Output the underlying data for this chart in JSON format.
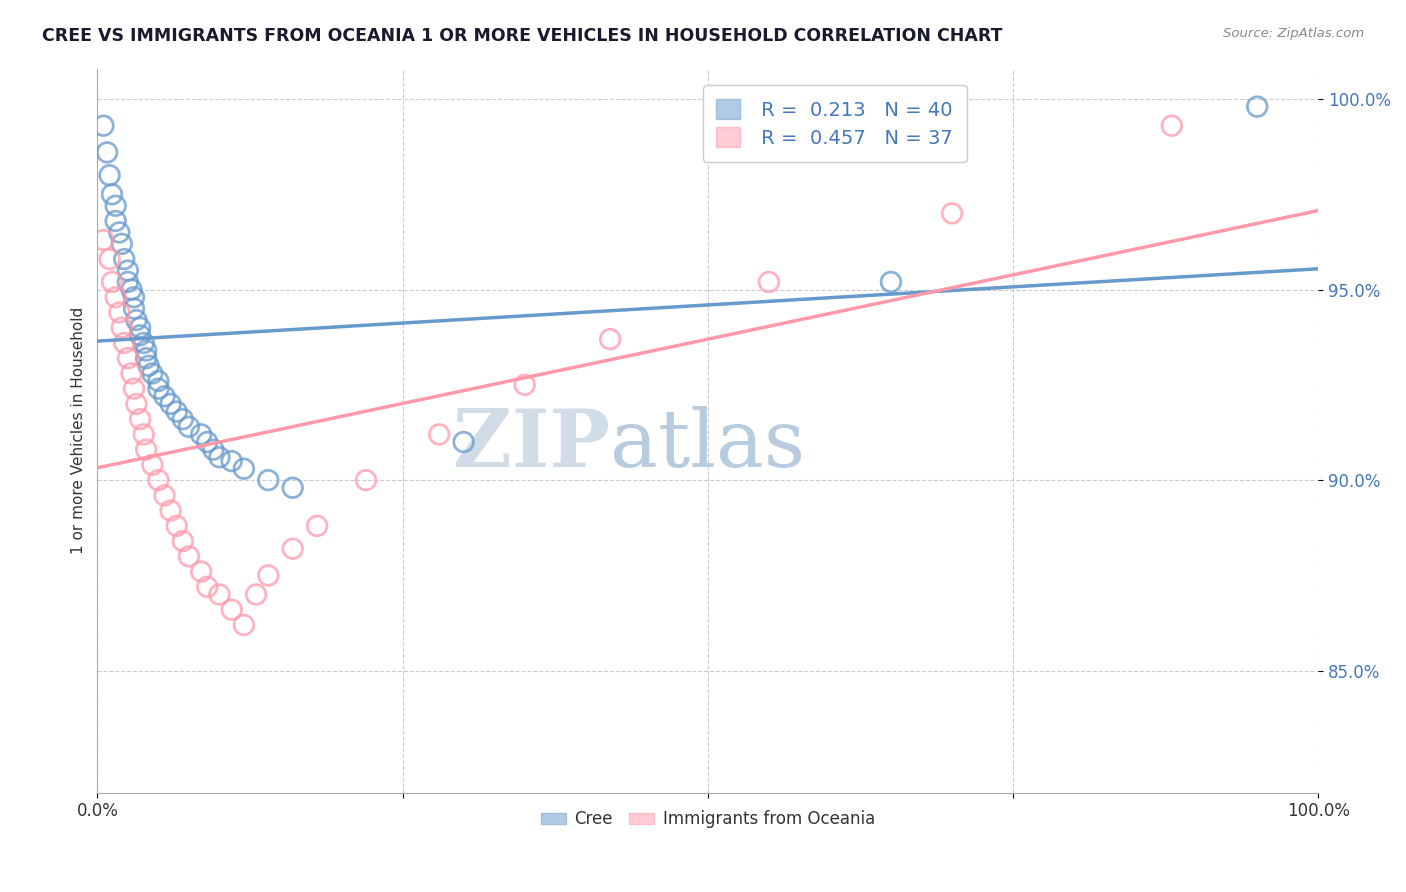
{
  "title": "CREE VS IMMIGRANTS FROM OCEANIA 1 OR MORE VEHICLES IN HOUSEHOLD CORRELATION CHART",
  "source_text": "Source: ZipAtlas.com",
  "ylabel": "1 or more Vehicles in Household",
  "xlim": [
    0.0,
    1.0
  ],
  "ylim": [
    0.818,
    1.008
  ],
  "ytick_positions": [
    0.85,
    0.9,
    0.95,
    1.0
  ],
  "ytick_labels": [
    "85.0%",
    "90.0%",
    "95.0%",
    "100.0%"
  ],
  "cree_color": "#6699cc",
  "oceania_color": "#ff99aa",
  "cree_R": 0.213,
  "cree_N": 40,
  "oceania_R": 0.457,
  "oceania_N": 37,
  "watermark_zip": "ZIP",
  "watermark_atlas": "atlas",
  "watermark_color_zip": "#d0dde8",
  "watermark_color_atlas": "#b8cce0",
  "legend_box_color": "#ffffff",
  "legend_border_color": "#cccccc",
  "title_color": "#1a1a2e",
  "axis_label_color": "#333333",
  "tick_color_x": "#333333",
  "tick_color_y": "#4477bb",
  "grid_color": "#cccccc",
  "background_color": "#ffffff",
  "cree_x": [
    0.005,
    0.008,
    0.01,
    0.012,
    0.015,
    0.015,
    0.018,
    0.02,
    0.022,
    0.025,
    0.025,
    0.028,
    0.03,
    0.03,
    0.032,
    0.035,
    0.035,
    0.038,
    0.04,
    0.04,
    0.042,
    0.045,
    0.05,
    0.05,
    0.055,
    0.06,
    0.065,
    0.07,
    0.075,
    0.085,
    0.09,
    0.095,
    0.1,
    0.11,
    0.12,
    0.14,
    0.16,
    0.3,
    0.65,
    0.95
  ],
  "cree_y": [
    0.993,
    0.986,
    0.98,
    0.975,
    0.972,
    0.968,
    0.965,
    0.962,
    0.958,
    0.955,
    0.952,
    0.95,
    0.948,
    0.945,
    0.942,
    0.94,
    0.938,
    0.936,
    0.934,
    0.932,
    0.93,
    0.928,
    0.926,
    0.924,
    0.922,
    0.92,
    0.918,
    0.916,
    0.914,
    0.912,
    0.91,
    0.908,
    0.906,
    0.905,
    0.903,
    0.9,
    0.898,
    0.91,
    0.952,
    0.998
  ],
  "oceania_x": [
    0.005,
    0.01,
    0.012,
    0.015,
    0.018,
    0.02,
    0.022,
    0.025,
    0.028,
    0.03,
    0.032,
    0.035,
    0.038,
    0.04,
    0.045,
    0.05,
    0.055,
    0.06,
    0.065,
    0.07,
    0.075,
    0.085,
    0.09,
    0.1,
    0.11,
    0.12,
    0.13,
    0.14,
    0.16,
    0.18,
    0.22,
    0.28,
    0.35,
    0.42,
    0.55,
    0.7,
    0.88
  ],
  "oceania_y": [
    0.963,
    0.958,
    0.952,
    0.948,
    0.944,
    0.94,
    0.936,
    0.932,
    0.928,
    0.924,
    0.92,
    0.916,
    0.912,
    0.908,
    0.904,
    0.9,
    0.896,
    0.892,
    0.888,
    0.884,
    0.88,
    0.876,
    0.872,
    0.87,
    0.866,
    0.862,
    0.87,
    0.875,
    0.882,
    0.888,
    0.9,
    0.912,
    0.925,
    0.937,
    0.952,
    0.97,
    0.993
  ]
}
